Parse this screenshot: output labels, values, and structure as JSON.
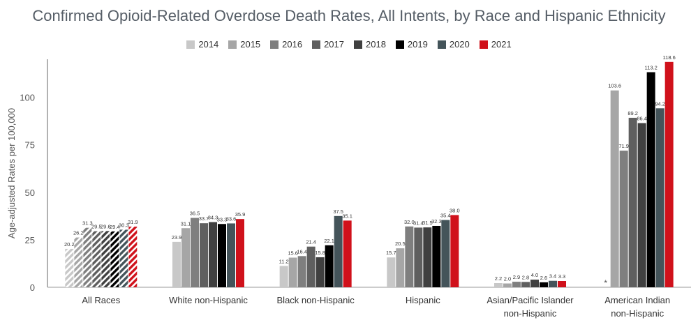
{
  "chart_data": {
    "type": "bar",
    "title": "Confirmed Opioid-Related Overdose Death Rates, All Intents, by Race and Hispanic Ethnicity",
    "ylabel": "Age-adjusted Rates per 100,000",
    "xlabel": "",
    "ylim": [
      0,
      120
    ],
    "yticks": [
      0,
      25,
      50,
      75,
      100
    ],
    "grid": false,
    "legend": "top-center",
    "categories": [
      "All Races",
      "White non-Hispanic",
      "Black non-Hispanic",
      "Hispanic",
      "Asian/Pacific Islander\nnon-Hispanic",
      "American Indian\nnon-Hispanic"
    ],
    "series": [
      {
        "name": "2014",
        "color": "#c8c8c8",
        "values": [
          20.2,
          23.9,
          11.2,
          15.7,
          2.2,
          null
        ],
        "labels": [
          "20.2",
          "23.9",
          "11.2",
          "15.7",
          "2.2",
          "*"
        ]
      },
      {
        "name": "2015",
        "color": "#a6a6a6",
        "values": [
          26.2,
          31.1,
          15.6,
          20.5,
          2.0,
          103.6
        ],
        "labels": [
          "26.2",
          "31.1",
          "15.6",
          "20.5",
          "2.0",
          "103.6"
        ]
      },
      {
        "name": "2016",
        "color": "#7f7f7f",
        "values": [
          31.3,
          36.5,
          16.4,
          32.0,
          2.9,
          71.9
        ],
        "labels": [
          "31.3",
          "36.5",
          "16.4",
          "32.0",
          "2.9",
          "71.9"
        ]
      },
      {
        "name": "2017",
        "color": "#5f5f5f",
        "values": [
          29.5,
          33.7,
          21.4,
          31.4,
          2.8,
          89.2
        ],
        "labels": [
          "29.5",
          "33.7",
          "21.4",
          "31.4",
          "2.8",
          "89.2"
        ]
      },
      {
        "name": "2018",
        "color": "#404040",
        "values": [
          29.6,
          34.3,
          15.8,
          31.5,
          4.0,
          86.4
        ],
        "labels": [
          "29.6",
          "34.3",
          "15.8",
          "31.5",
          "4.0",
          "86.4"
        ]
      },
      {
        "name": "2019",
        "color": "#000000",
        "values": [
          29.4,
          33.3,
          22.1,
          32.3,
          2.6,
          113.2
        ],
        "labels": [
          "29.4",
          "33.3",
          "22.1",
          "32.3",
          "2.6",
          "113.2"
        ]
      },
      {
        "name": "2020",
        "color": "#44545a",
        "values": [
          30.3,
          33.6,
          37.5,
          35.4,
          3.4,
          94.2
        ],
        "labels": [
          "30.3",
          "33.6",
          "37.5",
          "35.4",
          "3.4",
          "94.2"
        ]
      },
      {
        "name": "2021",
        "color": "#d0111b",
        "values": [
          31.9,
          35.9,
          35.1,
          38.0,
          3.3,
          118.6
        ],
        "labels": [
          "31.9",
          "35.9",
          "35.1",
          "38.0",
          "3.3",
          "118.6"
        ]
      }
    ],
    "hatched_category_index": 0
  }
}
